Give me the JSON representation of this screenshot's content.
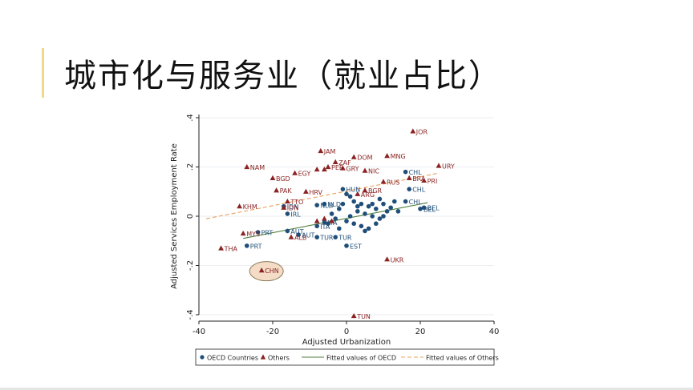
{
  "slide": {
    "title": "城市化与服务业（就业占比）"
  },
  "colors": {
    "oecd": "#1f4e79",
    "others": "#8b2323",
    "fit_oecd": "#4f7f3f",
    "fit_others": "#e8a05a",
    "highlight_fill": "#f4dcc6",
    "highlight_stroke": "#8a7a5a"
  },
  "chart_data": {
    "type": "scatter",
    "title": "",
    "xlabel": "Adjusted Urbanization",
    "ylabel": "Adjusted Services Employment Rate",
    "xlim": [
      -40,
      40
    ],
    "ylim": [
      -0.4,
      0.4
    ],
    "xticks": [
      -40,
      -20,
      0,
      20,
      40
    ],
    "yticks": [
      -0.4,
      -0.2,
      0,
      0.2,
      0.4
    ],
    "yticklabels": [
      "-.4",
      "-.2",
      "0",
      ".2",
      ".4"
    ],
    "grid": true,
    "highlight": "CHN",
    "legend": {
      "placement": "bottom",
      "entries": [
        "OECD Countries",
        "Others",
        "Fitted values of OECD",
        "Fitted values of Others"
      ]
    },
    "series": [
      {
        "name": "OECD Countries",
        "marker": "circle",
        "points": [
          {
            "label": "CHL",
            "x": 16,
            "y": 0.18
          },
          {
            "label": "CHL",
            "x": 17,
            "y": 0.11
          },
          {
            "label": "CHL",
            "x": 16,
            "y": 0.06
          },
          {
            "label": "HUN",
            "x": -1,
            "y": 0.11
          },
          {
            "label": "NLD",
            "x": -6,
            "y": 0.05
          },
          {
            "label": "NLD",
            "x": -8,
            "y": 0.045
          },
          {
            "label": "IRL",
            "x": -16,
            "y": 0.01
          },
          {
            "label": "IDN",
            "x": -17,
            "y": 0.04
          },
          {
            "label": "BEL",
            "x": 21,
            "y": 0.035
          },
          {
            "label": "BEL",
            "x": 20,
            "y": 0.03
          },
          {
            "label": "PRT",
            "x": -24,
            "y": -0.065
          },
          {
            "label": "PRT",
            "x": -27,
            "y": -0.12
          },
          {
            "label": "AUT",
            "x": -13,
            "y": -0.075
          },
          {
            "label": "AUT",
            "x": -16,
            "y": -0.06
          },
          {
            "label": "TUR",
            "x": -3,
            "y": -0.085
          },
          {
            "label": "TUR",
            "x": -8,
            "y": -0.085
          },
          {
            "label": "EST",
            "x": 0,
            "y": -0.12
          },
          {
            "label": "ITA",
            "x": -8,
            "y": -0.04
          },
          {
            "label": "ITA",
            "x": -6,
            "y": -0.025
          },
          {
            "label": "",
            "x": 2,
            "y": 0.06
          },
          {
            "label": "",
            "x": 4,
            "y": 0.05
          },
          {
            "label": "",
            "x": 6,
            "y": 0.04
          },
          {
            "label": "",
            "x": 8,
            "y": 0.03
          },
          {
            "label": "",
            "x": 10,
            "y": 0.05
          },
          {
            "label": "",
            "x": 12,
            "y": 0.035
          },
          {
            "label": "",
            "x": 3,
            "y": 0.02
          },
          {
            "label": "",
            "x": 5,
            "y": 0.01
          },
          {
            "label": "",
            "x": 7,
            "y": 0.0
          },
          {
            "label": "",
            "x": 9,
            "y": -0.01
          },
          {
            "label": "",
            "x": 11,
            "y": 0.02
          },
          {
            "label": "",
            "x": 1,
            "y": 0.0
          },
          {
            "label": "",
            "x": 0,
            "y": -0.02
          },
          {
            "label": "",
            "x": 2,
            "y": -0.03
          },
          {
            "label": "",
            "x": 4,
            "y": -0.04
          },
          {
            "label": "",
            "x": 6,
            "y": -0.05
          },
          {
            "label": "",
            "x": -2,
            "y": 0.03
          },
          {
            "label": "",
            "x": -4,
            "y": 0.01
          },
          {
            "label": "",
            "x": -3,
            "y": -0.01
          },
          {
            "label": "",
            "x": 13,
            "y": 0.06
          },
          {
            "label": "",
            "x": 14,
            "y": 0.02
          },
          {
            "label": "",
            "x": 8,
            "y": -0.03
          },
          {
            "label": "",
            "x": -1,
            "y": 0.05
          },
          {
            "label": "",
            "x": 1,
            "y": 0.08
          },
          {
            "label": "",
            "x": 5,
            "y": -0.06
          },
          {
            "label": "",
            "x": -5,
            "y": -0.03
          },
          {
            "label": "",
            "x": 3,
            "y": 0.04
          },
          {
            "label": "",
            "x": 9,
            "y": 0.07
          },
          {
            "label": "",
            "x": 0,
            "y": 0.09
          },
          {
            "label": "",
            "x": -2,
            "y": -0.05
          },
          {
            "label": "",
            "x": 7,
            "y": 0.05
          },
          {
            "label": "",
            "x": 10,
            "y": 0.0
          }
        ]
      },
      {
        "name": "Others",
        "marker": "triangle",
        "points": [
          {
            "label": "JOR",
            "x": 18,
            "y": 0.345
          },
          {
            "label": "URY",
            "x": 25,
            "y": 0.205
          },
          {
            "label": "MNG",
            "x": 11,
            "y": 0.245
          },
          {
            "label": "DOM",
            "x": 2,
            "y": 0.24
          },
          {
            "label": "JAM",
            "x": -7,
            "y": 0.265
          },
          {
            "label": "NAM",
            "x": -27,
            "y": 0.2
          },
          {
            "label": "EGY",
            "x": -14,
            "y": 0.175
          },
          {
            "label": "BGD",
            "x": -20,
            "y": 0.155
          },
          {
            "label": "NIC",
            "x": 5,
            "y": 0.185
          },
          {
            "label": "ZAF",
            "x": -3,
            "y": 0.22
          },
          {
            "label": "GRY",
            "x": -1,
            "y": 0.195
          },
          {
            "label": "PER",
            "x": -5,
            "y": 0.2
          },
          {
            "label": "",
            "x": -6,
            "y": 0.19
          },
          {
            "label": "",
            "x": -8,
            "y": 0.19
          },
          {
            "label": "BRA",
            "x": 17,
            "y": 0.155
          },
          {
            "label": "PRI",
            "x": 21,
            "y": 0.145
          },
          {
            "label": "RUS",
            "x": 10,
            "y": 0.14
          },
          {
            "label": "PAK",
            "x": -19,
            "y": 0.105
          },
          {
            "label": "HRV",
            "x": -11,
            "y": 0.1
          },
          {
            "label": "BGR",
            "x": 5,
            "y": 0.105
          },
          {
            "label": "TTO",
            "x": -16,
            "y": 0.06
          },
          {
            "label": "KHM",
            "x": -29,
            "y": 0.04
          },
          {
            "label": "IDN",
            "x": -17,
            "y": 0.035
          },
          {
            "label": "ARG",
            "x": 3,
            "y": 0.09
          },
          {
            "label": "MYS",
            "x": -28,
            "y": -0.07
          },
          {
            "label": "ALB",
            "x": -15,
            "y": -0.085
          },
          {
            "label": "",
            "x": -8,
            "y": -0.02
          },
          {
            "label": "",
            "x": -6,
            "y": -0.01
          },
          {
            "label": "",
            "x": -4,
            "y": -0.02
          },
          {
            "label": "THA",
            "x": -34,
            "y": -0.13
          },
          {
            "label": "CHN",
            "x": -23,
            "y": -0.22
          },
          {
            "label": "UKR",
            "x": 11,
            "y": -0.175
          },
          {
            "label": "TUN",
            "x": 2,
            "y": -0.405
          }
        ]
      }
    ],
    "fitted": [
      {
        "name": "Fitted values of OECD",
        "x": [
          -28,
          22
        ],
        "y": [
          -0.09,
          0.055
        ]
      },
      {
        "name": "Fitted values of Others",
        "x": [
          -38,
          25
        ],
        "y": [
          -0.01,
          0.175
        ]
      }
    ]
  }
}
